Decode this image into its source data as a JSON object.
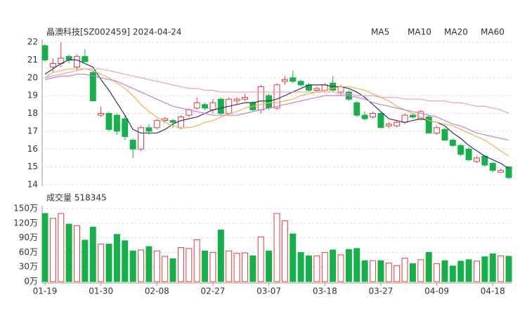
{
  "chart_data": [
    {
      "type": "candlestick",
      "title": "晶澳科技[SZ002459] 2024-04-24",
      "categories": [
        "01-19",
        null,
        null,
        null,
        null,
        null,
        null,
        "01-30",
        null,
        null,
        null,
        null,
        null,
        null,
        "02-08",
        null,
        null,
        null,
        null,
        null,
        null,
        "02-27",
        null,
        null,
        null,
        null,
        null,
        null,
        "03-07",
        null,
        null,
        null,
        null,
        null,
        null,
        "03-18",
        null,
        null,
        null,
        null,
        null,
        null,
        "03-27",
        null,
        null,
        null,
        null,
        null,
        null,
        "04-09",
        null,
        null,
        null,
        null,
        null,
        null,
        "04-18",
        null,
        null
      ],
      "open": [
        21.8,
        20.6,
        20.8,
        21.2,
        20.6,
        21.2,
        20.3,
        17.9,
        18.0,
        17.9,
        17.7,
        16.5,
        16.0,
        17.2,
        17.2,
        17.6,
        17.6,
        17.2,
        17.9,
        18.3,
        18.5,
        18.2,
        18.8,
        18.0,
        18.7,
        18.8,
        18.6,
        18.2,
        19.0,
        18.3,
        19.8,
        20.0,
        19.8,
        19.6,
        19.3,
        19.3,
        19.7,
        19.2,
        19.2,
        18.6,
        17.9,
        17.8,
        18.0,
        17.3,
        17.3,
        17.5,
        17.9,
        17.7,
        17.8,
        16.9,
        17.1,
        16.5,
        16.2,
        16.0,
        15.3,
        15.6,
        15.2,
        14.7,
        15.0
      ],
      "high": [
        21.9,
        21.1,
        22.0,
        21.3,
        21.3,
        21.6,
        20.4,
        18.4,
        18.1,
        18.0,
        17.9,
        16.6,
        17.3,
        17.4,
        17.7,
        17.8,
        17.7,
        17.9,
        18.3,
        18.9,
        18.6,
        18.8,
        18.9,
        18.9,
        18.9,
        19.1,
        18.7,
        19.6,
        19.1,
        19.7,
        20.1,
        20.4,
        19.9,
        19.7,
        19.5,
        19.7,
        20.1,
        19.6,
        19.3,
        18.7,
        18.1,
        18.1,
        18.1,
        17.5,
        17.6,
        18.0,
        18.0,
        18.2,
        17.9,
        17.3,
        17.2,
        16.6,
        16.3,
        16.1,
        15.6,
        15.7,
        15.3,
        14.9,
        15.0
      ],
      "low": [
        20.9,
        20.3,
        20.6,
        20.8,
        20.4,
        20.9,
        18.7,
        17.8,
        17.0,
        16.8,
        16.5,
        15.5,
        15.9,
        16.8,
        17.1,
        17.5,
        17.2,
        17.1,
        17.8,
        18.2,
        18.2,
        18.0,
        17.9,
        17.9,
        18.5,
        18.7,
        18.1,
        18.0,
        18.2,
        18.2,
        19.6,
        19.7,
        19.5,
        19.2,
        19.2,
        19.2,
        19.2,
        19.0,
        18.7,
        17.8,
        17.6,
        17.7,
        17.2,
        17.2,
        17.2,
        17.4,
        17.7,
        17.6,
        16.9,
        16.8,
        16.5,
        16.1,
        15.6,
        15.3,
        15.2,
        15.0,
        14.7,
        14.7,
        14.3
      ],
      "close": [
        21.0,
        20.8,
        21.1,
        21.0,
        21.2,
        20.9,
        18.7,
        18.0,
        17.1,
        17.0,
        16.7,
        16.0,
        17.2,
        17.0,
        17.6,
        17.7,
        17.5,
        17.8,
        18.2,
        18.6,
        18.3,
        18.6,
        18.0,
        18.8,
        18.8,
        18.9,
        18.2,
        19.5,
        18.3,
        19.6,
        19.9,
        19.8,
        19.6,
        19.3,
        19.4,
        19.6,
        19.3,
        19.5,
        18.8,
        17.9,
        17.7,
        18.0,
        17.2,
        17.4,
        17.5,
        17.9,
        17.8,
        18.1,
        16.9,
        17.2,
        16.5,
        16.2,
        15.7,
        15.4,
        15.5,
        15.1,
        14.8,
        14.8,
        14.4
      ],
      "up_color": "#e8383d",
      "down_color": "#14b14b",
      "series": [
        {
          "name": "MA5",
          "color": "#2f3466",
          "values": [
            20.2,
            20.5,
            20.8,
            21.0,
            21.0,
            20.8,
            20.6,
            19.9,
            19.3,
            18.6,
            17.9,
            17.1,
            16.9,
            16.9,
            16.9,
            17.1,
            17.4,
            17.6,
            17.7,
            17.8,
            18.0,
            18.2,
            18.3,
            18.4,
            18.5,
            18.6,
            18.6,
            18.7,
            18.7,
            18.8,
            19.0,
            19.2,
            19.4,
            19.6,
            19.6,
            19.6,
            19.5,
            19.5,
            19.4,
            19.2,
            18.9,
            18.5,
            18.1,
            17.7,
            17.6,
            17.5,
            17.6,
            17.7,
            17.6,
            17.5,
            17.3,
            16.9,
            16.6,
            16.2,
            15.9,
            15.6,
            15.4,
            15.2,
            14.9
          ]
        },
        {
          "name": "MA10",
          "color": "#f0b24a",
          "values": [
            20.0,
            20.3,
            20.4,
            20.5,
            20.5,
            20.5,
            20.4,
            20.2,
            20.0,
            19.7,
            19.4,
            19.0,
            18.5,
            18.1,
            17.8,
            17.5,
            17.3,
            17.2,
            17.2,
            17.3,
            17.5,
            17.6,
            17.8,
            18.0,
            18.1,
            18.3,
            18.4,
            18.5,
            18.6,
            18.6,
            18.7,
            18.8,
            19.0,
            19.1,
            19.2,
            19.3,
            19.4,
            19.5,
            19.5,
            19.4,
            19.3,
            19.1,
            18.9,
            18.7,
            18.4,
            18.2,
            18.0,
            17.8,
            17.6,
            17.5,
            17.4,
            17.3,
            17.1,
            16.9,
            16.7,
            16.5,
            16.2,
            15.9,
            15.6
          ]
        },
        {
          "name": "MA20",
          "color": "#c17fe0",
          "values": [
            19.9,
            20.0,
            20.1,
            20.1,
            20.2,
            20.2,
            20.1,
            20.0,
            19.9,
            19.8,
            19.6,
            19.4,
            19.2,
            19.0,
            18.8,
            18.6,
            18.4,
            18.3,
            18.2,
            18.1,
            18.0,
            17.9,
            17.9,
            17.9,
            17.9,
            18.0,
            18.1,
            18.2,
            18.3,
            18.4,
            18.5,
            18.6,
            18.7,
            18.8,
            18.9,
            19.0,
            19.0,
            19.0,
            19.0,
            18.9,
            18.8,
            18.6,
            18.5,
            18.4,
            18.3,
            18.2,
            18.1,
            18.0,
            17.9,
            17.8,
            17.6,
            17.4,
            17.3,
            17.1,
            16.9,
            16.8,
            16.7,
            16.6,
            16.5
          ]
        },
        {
          "name": "MA60",
          "color": "#f59bc1",
          "values": [
            20.0,
            20.1,
            20.2,
            20.3,
            20.4,
            20.5,
            20.5,
            20.5,
            20.4,
            20.3,
            20.2,
            20.1,
            20.0,
            19.9,
            19.8,
            19.7,
            19.6,
            19.5,
            19.4,
            19.4,
            19.3,
            19.3,
            19.2,
            19.2,
            19.2,
            19.2,
            19.2,
            19.2,
            19.2,
            19.2,
            19.2,
            19.2,
            19.2,
            19.2,
            19.2,
            19.2,
            19.2,
            19.1,
            19.1,
            19.0,
            19.0,
            19.0,
            18.9,
            18.9,
            18.9,
            18.8,
            18.8,
            18.8,
            18.7,
            18.7,
            18.7,
            18.6,
            18.6,
            18.5,
            18.4,
            18.4,
            18.3,
            18.2,
            18.0
          ]
        }
      ],
      "ylim": [
        14,
        22
      ],
      "yticks": [
        14,
        15,
        16,
        17,
        18,
        19,
        20,
        21,
        22
      ],
      "grid": true
    },
    {
      "type": "bar",
      "title": "成交量 518345",
      "values": [
        140,
        130,
        140,
        118,
        115,
        85,
        112,
        77,
        77,
        97,
        84,
        63,
        65,
        72,
        63,
        52,
        47,
        70,
        68,
        86,
        63,
        60,
        106,
        63,
        58,
        59,
        53,
        92,
        63,
        140,
        125,
        98,
        60,
        53,
        53,
        60,
        65,
        55,
        66,
        68,
        43,
        43,
        43,
        38,
        33,
        48,
        37,
        45,
        60,
        37,
        43,
        32,
        42,
        45,
        42,
        51,
        57,
        53,
        52
      ],
      "ylim": [
        0,
        150
      ],
      "yticks": [
        {
          "value": 0,
          "label": "0万"
        },
        {
          "value": 30,
          "label": "30万"
        },
        {
          "value": 60,
          "label": "60万"
        },
        {
          "value": 90,
          "label": "90万"
        },
        {
          "value": 120,
          "label": "120万"
        },
        {
          "value": 150,
          "label": "150万"
        }
      ],
      "grid": true
    }
  ]
}
